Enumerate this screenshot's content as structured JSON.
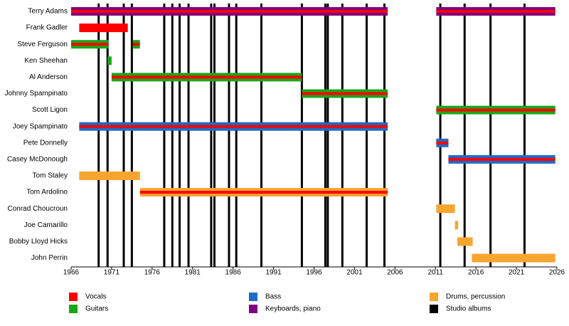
{
  "chart_data": {
    "type": "timeline",
    "xlim": [
      1966,
      2026
    ],
    "xticks": [
      1966,
      1971,
      1976,
      1981,
      1986,
      1991,
      1996,
      2001,
      2006,
      2011,
      2016,
      2021,
      2026
    ],
    "members": [
      {
        "name": "Terry Adams",
        "periods": [
          {
            "start": 1966,
            "end": 2005.1,
            "color": "#800080",
            "stripe": "#ff0000"
          },
          {
            "start": 2011.1,
            "end": 2025.8,
            "color": "#800080",
            "stripe": "#ff0000"
          }
        ]
      },
      {
        "name": "Frank Gadler",
        "periods": [
          {
            "start": 1967,
            "end": 1973,
            "color": "#ff0000"
          }
        ]
      },
      {
        "name": "Steve Ferguson",
        "periods": [
          {
            "start": 1966,
            "end": 1970.6,
            "color": "#1aa61a",
            "stripe": "#ff0000"
          },
          {
            "start": 1973.6,
            "end": 1974.5,
            "color": "#1aa61a",
            "stripe": "#ff0000"
          }
        ]
      },
      {
        "name": "Ken Sheehan",
        "periods": [
          {
            "start": 1970.5,
            "end": 1971,
            "color": "#1aa61a"
          }
        ]
      },
      {
        "name": "Al Anderson",
        "periods": [
          {
            "start": 1971,
            "end": 1994.5,
            "color": "#1aa61a",
            "stripe": "#ff0000"
          }
        ]
      },
      {
        "name": "Johnny Spampinato",
        "periods": [
          {
            "start": 1994.5,
            "end": 2005.1,
            "color": "#1aa61a",
            "stripe": "#ff0000"
          }
        ]
      },
      {
        "name": "Scott Ligon",
        "periods": [
          {
            "start": 2011.1,
            "end": 2025.8,
            "color": "#1aa61a",
            "stripe": "#ff0000"
          }
        ]
      },
      {
        "name": "Joey Spampinato",
        "periods": [
          {
            "start": 1967,
            "end": 2005.1,
            "color": "#1f6bc4",
            "stripe": "#ff0000"
          }
        ]
      },
      {
        "name": "Pete Donnelly",
        "periods": [
          {
            "start": 2011.1,
            "end": 2012.6,
            "color": "#1f6bc4",
            "stripe": "#ff0000"
          }
        ]
      },
      {
        "name": "Casey McDonough",
        "periods": [
          {
            "start": 2012.6,
            "end": 2025.8,
            "color": "#1f6bc4",
            "stripe": "#ff0000"
          }
        ]
      },
      {
        "name": "Tom Staley",
        "periods": [
          {
            "start": 1967,
            "end": 1974.5,
            "color": "#f8a530"
          }
        ]
      },
      {
        "name": "Tom Ardolino",
        "periods": [
          {
            "start": 1974.5,
            "end": 2005.1,
            "color": "#f8a530",
            "stripe": "#ff0000"
          }
        ]
      },
      {
        "name": "Conrad Choucroun",
        "periods": [
          {
            "start": 2011.1,
            "end": 2013.4,
            "color": "#f8a530"
          }
        ]
      },
      {
        "name": "Joe Camarillo",
        "periods": [
          {
            "start": 2013.4,
            "end": 2013.8,
            "color": "#f8a530"
          }
        ]
      },
      {
        "name": "Bobby Lloyd Hicks",
        "periods": [
          {
            "start": 2013.7,
            "end": 2015.6,
            "color": "#f8a530"
          }
        ]
      },
      {
        "name": "John Perrin",
        "periods": [
          {
            "start": 2015.5,
            "end": 2025.8,
            "color": "#f8a530"
          }
        ]
      }
    ],
    "albums": [
      1969.4,
      1970.5,
      1972.5,
      1973.5,
      1977.5,
      1978.5,
      1979.4,
      1980.5,
      1983.3,
      1983.7,
      1985.5,
      1986.4,
      1989.5,
      1994.5,
      1997.4,
      1997.7,
      1999.5,
      2002.5,
      2004.7,
      2011.6,
      2014.6,
      2017.8,
      2022
    ],
    "album_color": "#000000",
    "legend": [
      {
        "name": "Vocals",
        "color": "#ff0000"
      },
      {
        "name": "Guitars",
        "color": "#1aa61a"
      },
      {
        "name": "Bass",
        "color": "#1f6bc4"
      },
      {
        "name": "Keyboards, piano",
        "color": "#800080"
      },
      {
        "name": "Drums, percussion",
        "color": "#f8a530"
      },
      {
        "name": "Studio albums",
        "color": "#000000"
      }
    ]
  }
}
